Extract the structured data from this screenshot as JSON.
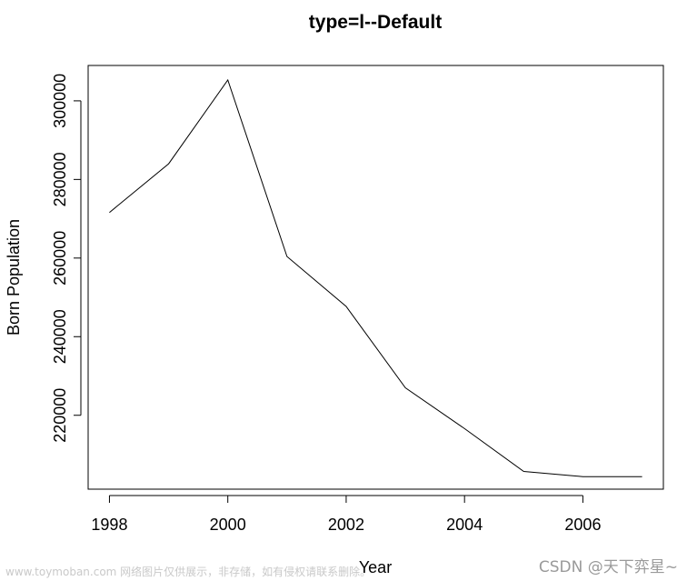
{
  "chart_data": {
    "type": "line",
    "title": "type=l--Default",
    "xlabel": "Year",
    "ylabel": "Born Population",
    "x": [
      1998,
      1999,
      2000,
      2001,
      2002,
      2003,
      2004,
      2005,
      2006,
      2007
    ],
    "series": [
      {
        "values": [
          271600,
          284000,
          305300,
          260400,
          247700,
          227000,
          216600,
          205700,
          204400,
          204400
        ]
      }
    ],
    "xlim": [
      1997.64,
      2007.36
    ],
    "ylim": [
      201200,
      309000
    ],
    "xticks": [
      1998,
      2000,
      2002,
      2004,
      2006
    ],
    "yticks": [
      220000,
      240000,
      260000,
      280000,
      300000
    ],
    "line_color": "#000000",
    "grid": false,
    "legend": "none"
  },
  "watermarks": {
    "left": "www.toymoban.com 网络图片仅供展示，非存储，如有侵权请联系删除。",
    "right": "CSDN @天下弈星~"
  }
}
